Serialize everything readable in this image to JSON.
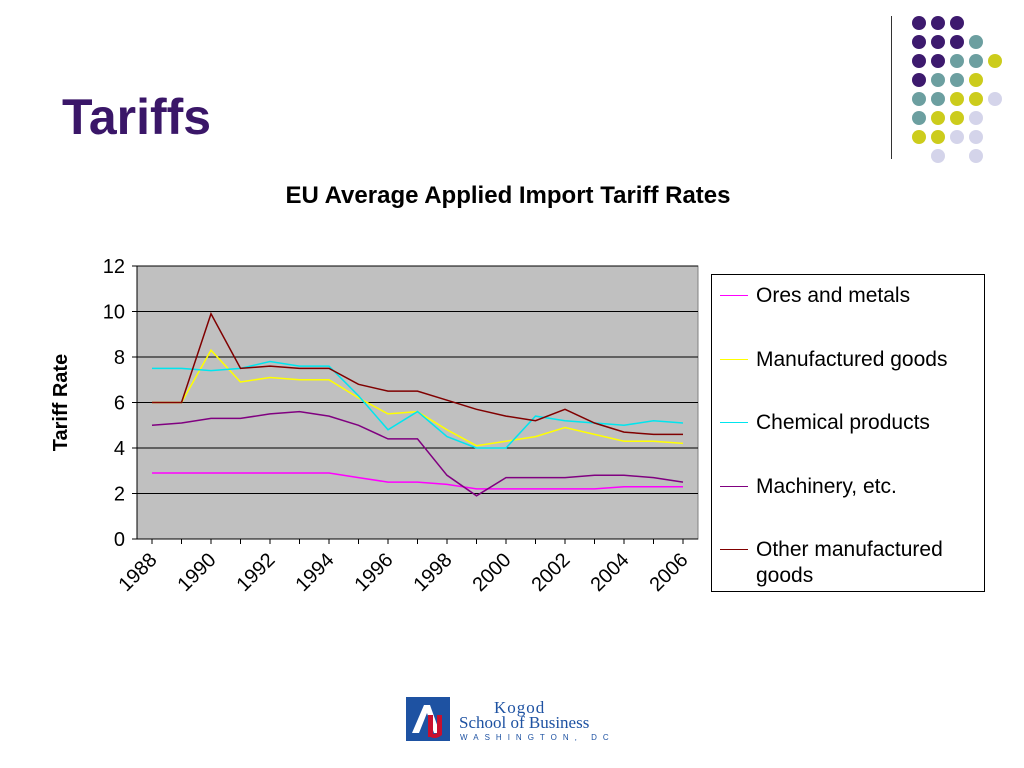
{
  "slide": {
    "title": "Tariffs"
  },
  "logo": {
    "line1": "Kogod",
    "line2": "School of Business",
    "line3": "WASHINGTON, DC"
  },
  "colors": {
    "title": "#3a1668",
    "plot_bg": "#c0c0c0",
    "dot_purple": "#3d1a6e",
    "dot_teal": "#6c9fa0",
    "dot_yellow": "#cccc1c",
    "dot_lavender": "#d4d4ea"
  },
  "chart_data": {
    "type": "line",
    "title": "EU Average Applied Import Tariff Rates",
    "xlabel": "",
    "ylabel": "Tariff Rate",
    "ylim": [
      0,
      12
    ],
    "yticks": [
      0,
      2,
      4,
      6,
      8,
      10,
      12
    ],
    "x": [
      1988,
      1989,
      1990,
      1991,
      1992,
      1993,
      1994,
      1995,
      1996,
      1997,
      1998,
      1999,
      2000,
      2001,
      2002,
      2003,
      2004,
      2005,
      2006
    ],
    "xtick_labels": [
      "1988",
      "1990",
      "1992",
      "1994",
      "1996",
      "1998",
      "2000",
      "2002",
      "2004",
      "2006"
    ],
    "grid": true,
    "legend_position": "right",
    "series": [
      {
        "name": "Ores and metals",
        "color": "#ff00ff",
        "values": [
          2.9,
          2.9,
          2.9,
          2.9,
          2.9,
          2.9,
          2.9,
          2.7,
          2.5,
          2.5,
          2.4,
          2.2,
          2.2,
          2.2,
          2.2,
          2.2,
          2.3,
          2.3,
          2.3
        ]
      },
      {
        "name": "Manufactured goods",
        "color": "#ffff00",
        "values": [
          6.0,
          6.0,
          8.3,
          6.9,
          7.1,
          7.0,
          7.0,
          6.2,
          5.5,
          5.6,
          4.8,
          4.1,
          4.3,
          4.5,
          4.9,
          4.6,
          4.3,
          4.3,
          4.2
        ]
      },
      {
        "name": "Chemical products",
        "color": "#00e5ee",
        "values": [
          7.5,
          7.5,
          7.4,
          7.5,
          7.8,
          7.6,
          7.6,
          6.3,
          4.8,
          5.6,
          4.5,
          4.0,
          4.0,
          5.4,
          5.2,
          5.1,
          5.0,
          5.2,
          5.1
        ]
      },
      {
        "name": "Machinery, etc.",
        "color": "#800080",
        "values": [
          5.0,
          5.1,
          5.3,
          5.3,
          5.5,
          5.6,
          5.4,
          5.0,
          4.4,
          4.4,
          2.8,
          1.9,
          2.7,
          2.7,
          2.7,
          2.8,
          2.8,
          2.7,
          2.5
        ]
      },
      {
        "name": "Other manufactured goods",
        "color": "#800000",
        "values": [
          6.0,
          6.0,
          9.9,
          7.5,
          7.6,
          7.5,
          7.5,
          6.8,
          6.5,
          6.5,
          6.1,
          5.7,
          5.4,
          5.2,
          5.7,
          5.1,
          4.7,
          4.6,
          4.6
        ]
      }
    ]
  }
}
